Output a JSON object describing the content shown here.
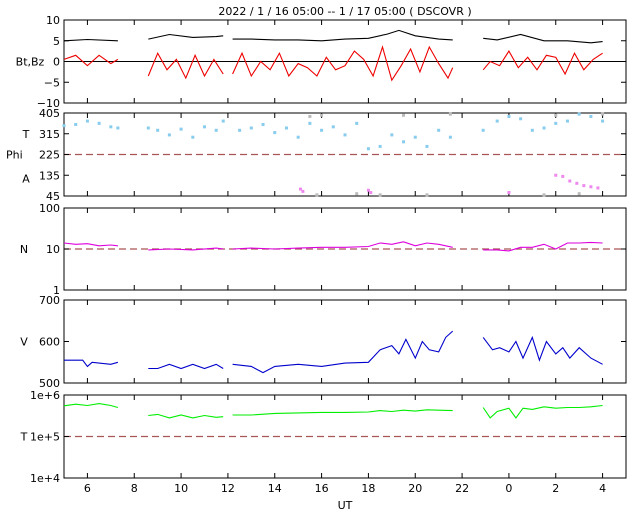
{
  "title": "2022 /  1 / 16   05:00 --   1 / 17   05:00 ( DSCOVR )",
  "xlabel": "UT",
  "x_ticks": [
    "6",
    "8",
    "10",
    "12",
    "14",
    "16",
    "18",
    "20",
    "22",
    "0",
    "2",
    "4"
  ],
  "x_tick_hours": [
    6,
    8,
    10,
    12,
    14,
    16,
    18,
    20,
    22,
    24,
    26,
    28
  ],
  "x_range": [
    5,
    29
  ],
  "colors": {
    "bt": "#000000",
    "bz": "#ee0000",
    "theta": "#88ccee",
    "phi": "#ee88ee",
    "phi_gray": "#bbbbbb",
    "density": "#dd00dd",
    "speed": "#0000cc",
    "temp": "#00ee00",
    "ref": "#aa5555"
  },
  "chart_data": [
    {
      "type": "line",
      "panel": "magnetic-field",
      "ylabel": "Bt,Bz",
      "ylim": [
        -10,
        10
      ],
      "y_ticks": [
        "10",
        "5",
        "0",
        "−5",
        "−10"
      ],
      "y_tick_values": [
        10,
        5,
        0,
        -5,
        -10
      ],
      "zero_line": 0,
      "gaps": [
        [
          7.4,
          8.6
        ],
        [
          11.8,
          12.2
        ],
        [
          21.6,
          22.9
        ]
      ],
      "series": [
        {
          "id": "bt",
          "color": "#000000",
          "x": [
            5.0,
            6.0,
            7.3,
            8.6,
            9.5,
            10.5,
            11.5,
            11.8,
            12.2,
            13.0,
            14.0,
            15.0,
            16.0,
            17.0,
            18.0,
            18.8,
            19.3,
            20.0,
            21.0,
            21.6,
            22.9,
            23.5,
            24.5,
            25.5,
            26.5,
            27.5,
            28.0
          ],
          "y": [
            5,
            5.3,
            5,
            5.4,
            6.5,
            5.8,
            6,
            6.2,
            5.4,
            5.4,
            5.2,
            5.2,
            5,
            5.4,
            5.6,
            6.6,
            7.5,
            6.2,
            5.4,
            5.2,
            5.6,
            5.2,
            6.5,
            5,
            5,
            4.5,
            4.8
          ]
        },
        {
          "id": "bz",
          "color": "#ee0000",
          "x": [
            5.0,
            5.5,
            6.0,
            6.5,
            7.0,
            7.3,
            8.6,
            9.0,
            9.4,
            9.8,
            10.2,
            10.6,
            11.0,
            11.4,
            11.8,
            12.2,
            12.6,
            13.0,
            13.4,
            13.8,
            14.2,
            14.6,
            15.0,
            15.4,
            15.8,
            16.2,
            16.6,
            17.0,
            17.4,
            17.8,
            18.2,
            18.6,
            19.0,
            19.4,
            19.8,
            20.2,
            20.6,
            21.0,
            21.4,
            21.6,
            22.9,
            23.2,
            23.6,
            24.0,
            24.4,
            24.8,
            25.2,
            25.6,
            26.0,
            26.4,
            26.8,
            27.2,
            27.6,
            28.0
          ],
          "y": [
            0.5,
            1.5,
            -1,
            1.5,
            -0.5,
            0.5,
            -3.5,
            2,
            -2,
            0.5,
            -4,
            1.5,
            -3.5,
            0.5,
            -3,
            -3,
            2,
            -3.5,
            0,
            -2,
            2,
            -3.5,
            -0.5,
            -1.5,
            -3.5,
            1,
            -2,
            -1,
            2.5,
            0.5,
            -3.5,
            3.5,
            -4.5,
            -1,
            3,
            -2.5,
            3.5,
            -0.5,
            -4,
            -1.5,
            -2,
            0,
            -1,
            2.5,
            -1.5,
            1,
            -2,
            1.5,
            1,
            -3,
            2,
            -2,
            0.5,
            2
          ]
        }
      ]
    },
    {
      "type": "scatter",
      "panel": "angles",
      "ylabels": [
        "T",
        "Phi",
        "A"
      ],
      "ylim": [
        45,
        405
      ],
      "y_ticks": [
        "405",
        "315",
        "225",
        "135",
        "45"
      ],
      "y_tick_values": [
        405,
        315,
        225,
        135,
        45
      ],
      "ref_line": 225,
      "series": [
        {
          "id": "theta",
          "color": "#88ccee",
          "x": [
            5.0,
            5.5,
            6.0,
            6.5,
            7.0,
            7.3,
            8.6,
            9.0,
            9.5,
            10.0,
            10.5,
            11.0,
            11.5,
            11.8,
            12.5,
            13.0,
            13.5,
            14.0,
            14.5,
            15.0,
            15.5,
            16.0,
            16.5,
            17.0,
            17.5,
            18.0,
            18.5,
            19.0,
            19.5,
            20.0,
            20.5,
            21.0,
            21.5,
            22.9,
            23.5,
            24.0,
            24.5,
            25.0,
            25.5,
            26.0,
            26.5,
            27.0,
            27.5,
            28.0
          ],
          "y": [
            350,
            355,
            370,
            360,
            345,
            340,
            340,
            330,
            310,
            335,
            300,
            345,
            330,
            370,
            330,
            340,
            355,
            320,
            340,
            300,
            360,
            330,
            345,
            310,
            360,
            250,
            260,
            310,
            280,
            300,
            260,
            330,
            300,
            330,
            370,
            390,
            380,
            330,
            340,
            360,
            370,
            400,
            390,
            370
          ]
        },
        {
          "id": "phi",
          "color": "#ee88ee",
          "x": [
            15.1,
            15.2,
            18.0,
            18.1,
            24.0,
            26.0,
            26.3,
            26.6,
            26.9,
            27.2,
            27.5,
            27.8
          ],
          "y": [
            75,
            65,
            70,
            60,
            60,
            135,
            130,
            110,
            100,
            90,
            85,
            80
          ]
        },
        {
          "id": "phi-gray",
          "color": "#bbbbbb",
          "x": [
            15.5,
            15.8,
            16.0,
            17.5,
            18.5,
            19.5,
            20.5,
            21.5,
            25.5,
            26.0,
            27.0,
            28.0
          ],
          "y": [
            390,
            50,
            395,
            55,
            50,
            395,
            50,
            400,
            50,
            395,
            55,
            400
          ]
        }
      ]
    },
    {
      "type": "line",
      "panel": "density",
      "ylabel": "N",
      "y_scale": "log",
      "ylim": [
        1,
        100
      ],
      "y_ticks": [
        "100",
        "10",
        "1"
      ],
      "y_tick_values": [
        100,
        10,
        1
      ],
      "ref_line": 10,
      "gaps": [
        [
          7.4,
          8.6
        ],
        [
          11.8,
          12.2
        ],
        [
          21.6,
          22.9
        ]
      ],
      "series": [
        {
          "id": "density",
          "color": "#dd00dd",
          "x": [
            5.0,
            5.5,
            6.0,
            6.5,
            7.0,
            7.3,
            8.6,
            9.5,
            10.5,
            11.5,
            11.8,
            12.2,
            13.0,
            14.0,
            15.0,
            16.0,
            17.0,
            18.0,
            18.5,
            19.0,
            19.5,
            20.0,
            20.5,
            21.0,
            21.6,
            22.9,
            23.5,
            24.0,
            24.5,
            25.0,
            25.5,
            26.0,
            26.5,
            27.0,
            27.5,
            28.0
          ],
          "y": [
            14,
            13,
            13.5,
            12,
            12.5,
            12,
            9.5,
            10,
            9.5,
            10.5,
            10,
            10,
            10.5,
            10,
            10.5,
            11,
            11,
            11.5,
            14,
            13,
            15,
            12,
            14,
            13,
            11,
            9.5,
            9.5,
            9,
            11,
            11,
            13,
            10,
            14,
            14,
            14.5,
            14
          ]
        }
      ]
    },
    {
      "type": "line",
      "panel": "speed",
      "ylabel": "V",
      "ylim": [
        500,
        700
      ],
      "y_ticks": [
        "700",
        "600",
        "500"
      ],
      "y_tick_values": [
        700,
        600,
        500
      ],
      "gaps": [
        [
          7.4,
          8.6
        ],
        [
          11.8,
          12.2
        ],
        [
          21.6,
          22.9
        ]
      ],
      "series": [
        {
          "id": "speed",
          "color": "#0000cc",
          "x": [
            5.0,
            5.8,
            6.0,
            6.2,
            7.0,
            7.3,
            8.6,
            9.0,
            9.5,
            10.0,
            10.5,
            11.0,
            11.5,
            11.8,
            12.2,
            13.0,
            13.5,
            14.0,
            15.0,
            16.0,
            17.0,
            18.0,
            18.5,
            19.0,
            19.3,
            19.6,
            20.0,
            20.3,
            20.6,
            21.0,
            21.3,
            21.6,
            22.9,
            23.3,
            23.6,
            24.0,
            24.3,
            24.6,
            25.0,
            25.3,
            25.6,
            26.0,
            26.3,
            26.6,
            27.0,
            27.5,
            28.0
          ],
          "y": [
            555,
            555,
            540,
            550,
            545,
            550,
            535,
            535,
            545,
            535,
            545,
            535,
            545,
            535,
            545,
            540,
            525,
            540,
            545,
            540,
            548,
            550,
            580,
            590,
            570,
            605,
            560,
            600,
            580,
            575,
            610,
            625,
            610,
            580,
            585,
            575,
            600,
            560,
            610,
            555,
            600,
            570,
            585,
            560,
            585,
            560,
            545
          ]
        }
      ]
    },
    {
      "type": "line",
      "panel": "temperature",
      "ylabel": "T",
      "y_scale": "log",
      "ylim": [
        10000,
        1000000
      ],
      "y_ticks": [
        "1e+6",
        "1e+5",
        "1e+4"
      ],
      "y_tick_values": [
        1000000,
        100000,
        10000
      ],
      "ref_line": 100000,
      "gaps": [
        [
          7.4,
          8.6
        ],
        [
          11.8,
          12.2
        ],
        [
          21.6,
          22.9
        ]
      ],
      "series": [
        {
          "id": "temp",
          "color": "#00ee00",
          "x": [
            5.0,
            5.5,
            6.0,
            6.5,
            7.0,
            7.3,
            8.6,
            9.0,
            9.5,
            10.0,
            10.5,
            11.0,
            11.5,
            11.8,
            12.2,
            13.0,
            14.0,
            15.0,
            16.0,
            17.0,
            18.0,
            18.5,
            19.0,
            19.5,
            20.0,
            20.5,
            21.0,
            21.6,
            22.9,
            23.2,
            23.5,
            24.0,
            24.3,
            24.6,
            25.0,
            25.5,
            26.0,
            26.5,
            27.0,
            27.5,
            28.0
          ],
          "y": [
            550000,
            600000,
            560000,
            620000,
            560000,
            500000,
            320000,
            340000,
            280000,
            330000,
            280000,
            320000,
            290000,
            300000,
            330000,
            330000,
            360000,
            370000,
            380000,
            380000,
            390000,
            420000,
            400000,
            430000,
            410000,
            440000,
            430000,
            420000,
            500000,
            280000,
            400000,
            480000,
            280000,
            480000,
            450000,
            520000,
            480000,
            500000,
            500000,
            520000,
            560000
          ]
        }
      ]
    }
  ]
}
